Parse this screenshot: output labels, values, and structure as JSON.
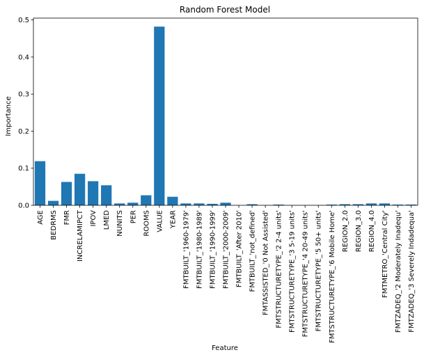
{
  "chart_data": {
    "type": "bar",
    "title": "Random Forest Model",
    "xlabel": "Feature",
    "ylabel": "Importance",
    "ylim": [
      0,
      0.505
    ],
    "yticks": [
      0.0,
      0.1,
      0.2,
      0.3,
      0.4,
      0.5
    ],
    "ytick_labels": [
      "0.0",
      "0.1",
      "0.2",
      "0.3",
      "0.4",
      "0.5"
    ],
    "grid": false,
    "bar_color": "#1f77b4",
    "categories": [
      "AGE",
      "BEDRMS",
      "FMR",
      "INCRELAMIPCT",
      "IPOV",
      "LMED",
      "NUNITS",
      "PER",
      "ROOMS",
      "VALUE",
      "YEAR",
      "FMTBUILT_'1960-1979'",
      "FMTBUILT_'1980-1989'",
      "FMTBUILT_'1990-1999'",
      "FMTBUILT_'2000-2009'",
      "FMTBUILT_'After 2010'",
      "FMTBUILT_'not_defined'",
      "FMTASSISTED_'0 Not Assisted'",
      "FMTSTRUCTURETYPE_'2 2-4 units'",
      "FMTSTRUCTURETYPE_'3 5-19 units'",
      "FMTSTRUCTURETYPE_'4 20-49 units'",
      "FMTSTRUCTURETYPE_'5 50+ units'",
      "FMTSTRUCTURETYPE_'6 Mobile Home'",
      "REGION_2.0",
      "REGION_3.0",
      "REGION_4.0",
      "FMTMETRO_'Central City'",
      "FMTZADEQ_'2 Moderately Inadequ'",
      "FMTZADEQ_'3 Severely Indadequa'"
    ],
    "values": [
      0.119,
      0.012,
      0.063,
      0.085,
      0.065,
      0.054,
      0.005,
      0.007,
      0.027,
      0.482,
      0.023,
      0.005,
      0.005,
      0.004,
      0.007,
      0.0,
      0.003,
      0.0005,
      0.002,
      0.0005,
      0.0005,
      0.0005,
      0.002,
      0.003,
      0.003,
      0.005,
      0.005,
      0.002,
      0.002
    ]
  }
}
